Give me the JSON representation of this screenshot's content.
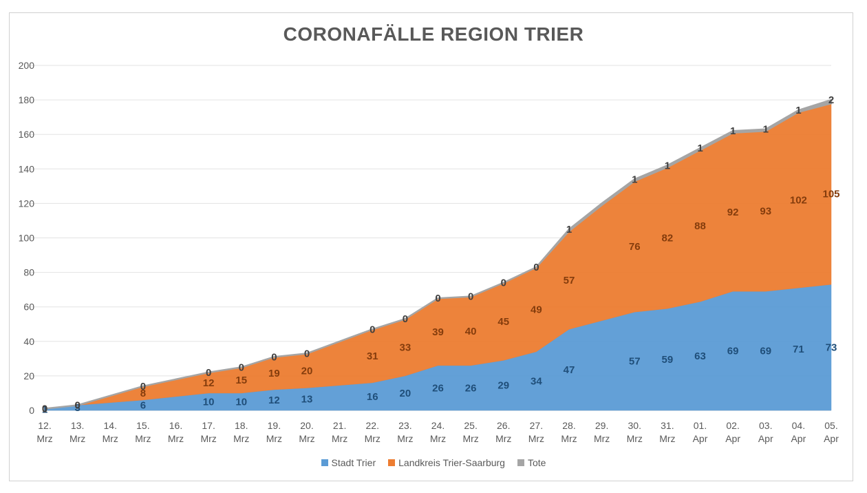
{
  "chart_data": {
    "type": "area",
    "stacked": true,
    "title": "CORONAFÄLLE REGION TRIER",
    "xlabel": "",
    "ylabel": "",
    "ylim": [
      0,
      200
    ],
    "yticks": [
      "0",
      "20",
      "40",
      "60",
      "80",
      "100",
      "120",
      "140",
      "160",
      "180",
      "200"
    ],
    "grid": true,
    "legend_position": "bottom",
    "categories": [
      [
        "12.",
        "Mrz"
      ],
      [
        "13.",
        "Mrz"
      ],
      [
        "14.",
        "Mrz"
      ],
      [
        "15.",
        "Mrz"
      ],
      [
        "16.",
        "Mrz"
      ],
      [
        "17.",
        "Mrz"
      ],
      [
        "18.",
        "Mrz"
      ],
      [
        "19.",
        "Mrz"
      ],
      [
        "20.",
        "Mrz"
      ],
      [
        "21.",
        "Mrz"
      ],
      [
        "22.",
        "Mrz"
      ],
      [
        "23.",
        "Mrz"
      ],
      [
        "24.",
        "Mrz"
      ],
      [
        "25.",
        "Mrz"
      ],
      [
        "26.",
        "Mrz"
      ],
      [
        "27.",
        "Mrz"
      ],
      [
        "28.",
        "Mrz"
      ],
      [
        "29.",
        "Mrz"
      ],
      [
        "30.",
        "Mrz"
      ],
      [
        "31.",
        "Mrz"
      ],
      [
        "01.",
        "Apr"
      ],
      [
        "02.",
        "Apr"
      ],
      [
        "03.",
        "Apr"
      ],
      [
        "04.",
        "Apr"
      ],
      [
        "05.",
        "Apr"
      ]
    ],
    "series": [
      {
        "name": "Stadt Trier",
        "color": "#5b9bd5",
        "label_color": "#1f4e79",
        "values": [
          1,
          3,
          4.5,
          6,
          8,
          10,
          10,
          12,
          13,
          14.5,
          16,
          20,
          26,
          26,
          29,
          34,
          47,
          52,
          57,
          59,
          63,
          69,
          69,
          71,
          73
        ],
        "labels": [
          "1",
          "3",
          "",
          "6",
          "",
          "10",
          "10",
          "12",
          "13",
          "",
          "16",
          "20",
          "26",
          "26",
          "29",
          "34",
          "47",
          "",
          "57",
          "59",
          "63",
          "69",
          "69",
          "71",
          "73"
        ]
      },
      {
        "name": "Landkreis Trier-Saarburg",
        "color": "#ed7d31",
        "label_color": "#843c0c",
        "values": [
          0,
          0,
          4,
          8,
          10,
          12,
          15,
          19,
          20,
          25.5,
          31,
          33,
          39,
          40,
          45,
          49,
          57,
          67,
          76,
          82,
          88,
          92,
          93,
          102,
          105
        ],
        "labels": [
          "0",
          "0",
          "",
          "8",
          "",
          "12",
          "15",
          "19",
          "20",
          "",
          "31",
          "33",
          "39",
          "40",
          "45",
          "49",
          "57",
          "",
          "76",
          "82",
          "88",
          "92",
          "93",
          "102",
          "105"
        ]
      },
      {
        "name": "Tote",
        "color": "#a5a5a5",
        "label_color": "#404040",
        "values": [
          0,
          0,
          0,
          0,
          0,
          0,
          0,
          0,
          0,
          0,
          0,
          0,
          0,
          0,
          0,
          0,
          1,
          1,
          1,
          1,
          1,
          1,
          1,
          1,
          2
        ],
        "labels": [
          "0",
          "0",
          "",
          "0",
          "",
          "0",
          "0",
          "0",
          "0",
          "",
          "0",
          "0",
          "0",
          "0",
          "0",
          "0",
          "1",
          "",
          "1",
          "1",
          "1",
          "1",
          "1",
          "1",
          "2"
        ]
      }
    ]
  }
}
